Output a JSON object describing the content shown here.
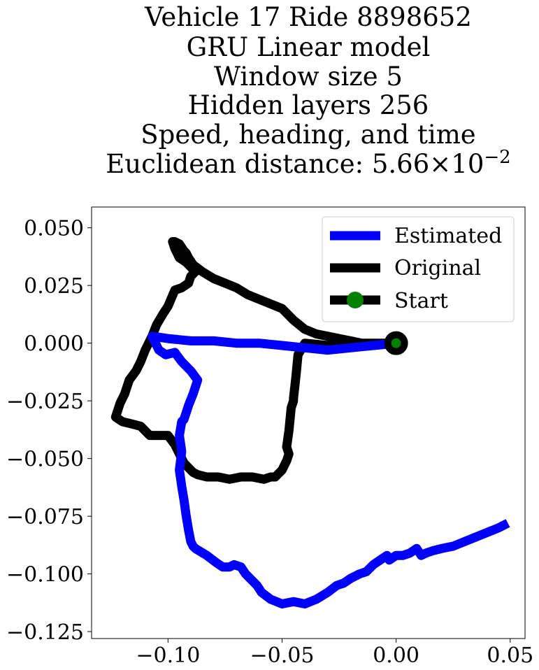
{
  "chart_data": {
    "type": "line",
    "title_lines": [
      "Vehicle 17 Ride 8898652",
      "GRU Linear model",
      "Window size 5",
      "Hidden layers 256",
      "Speed, heading, and time"
    ],
    "distance_label": "Euclidean distance: ",
    "distance_mantissa": "5.66",
    "distance_times": "×",
    "distance_base": "10",
    "distance_exponent": "−2",
    "xlim": [
      -0.1335,
      0.0565
    ],
    "ylim": [
      -0.128,
      0.059
    ],
    "xticks": [
      -0.1,
      -0.05,
      0.0,
      0.05
    ],
    "xtick_labels": [
      "−0.10",
      "−0.05",
      "0.00",
      "0.05"
    ],
    "yticks": [
      0.05,
      0.025,
      0.0,
      -0.025,
      -0.05,
      -0.075,
      -0.1,
      -0.125
    ],
    "ytick_labels": [
      "0.050",
      "0.025",
      "0.000",
      "−0.025",
      "−0.050",
      "−0.075",
      "−0.100",
      "−0.125"
    ],
    "grid": false,
    "legend_position": "top-right",
    "series": [
      {
        "name": "Estimated",
        "color": "#0000ff",
        "x": [
          0.0,
          -0.01,
          -0.02,
          -0.03,
          -0.04,
          -0.05,
          -0.06,
          -0.07,
          -0.08,
          -0.09,
          -0.1,
          -0.107,
          -0.104,
          -0.101,
          -0.097,
          -0.094,
          -0.09,
          -0.087,
          -0.089,
          -0.091,
          -0.093,
          -0.094,
          -0.095,
          -0.094,
          -0.095,
          -0.094,
          -0.093,
          -0.092,
          -0.091,
          -0.09,
          -0.089,
          -0.088,
          -0.083,
          -0.079,
          -0.076,
          -0.073,
          -0.071,
          -0.068,
          -0.066,
          -0.064,
          -0.061,
          -0.059,
          -0.055,
          -0.05,
          -0.045,
          -0.04,
          -0.035,
          -0.03,
          -0.026,
          -0.023,
          -0.02,
          -0.016,
          -0.013,
          -0.01,
          -0.007,
          -0.004,
          -0.003,
          0.0,
          0.003,
          0.006,
          0.009,
          0.011,
          0.013,
          0.016,
          0.02,
          0.025,
          0.03,
          0.035,
          0.04,
          0.045,
          0.049
        ],
        "y": [
          0.0,
          -0.001,
          -0.002,
          -0.003,
          -0.002,
          -0.001,
          0.0,
          0.0,
          0.001,
          0.001,
          0.002,
          0.003,
          -0.003,
          -0.005,
          -0.004,
          -0.008,
          -0.012,
          -0.016,
          -0.022,
          -0.027,
          -0.033,
          -0.034,
          -0.04,
          -0.047,
          -0.055,
          -0.062,
          -0.068,
          -0.075,
          -0.081,
          -0.086,
          -0.088,
          -0.089,
          -0.092,
          -0.095,
          -0.097,
          -0.097,
          -0.096,
          -0.097,
          -0.1,
          -0.102,
          -0.105,
          -0.108,
          -0.111,
          -0.113,
          -0.112,
          -0.113,
          -0.111,
          -0.108,
          -0.105,
          -0.104,
          -0.102,
          -0.1,
          -0.099,
          -0.096,
          -0.094,
          -0.092,
          -0.094,
          -0.092,
          -0.092,
          -0.091,
          -0.089,
          -0.092,
          -0.091,
          -0.09,
          -0.089,
          -0.088,
          -0.086,
          -0.084,
          -0.082,
          -0.08,
          -0.078
        ]
      },
      {
        "name": "Original",
        "color": "#000000",
        "x": [
          0.0,
          -0.01,
          -0.02,
          -0.03,
          -0.04,
          -0.043,
          -0.044,
          -0.045,
          -0.045,
          -0.046,
          -0.047,
          -0.048,
          -0.047,
          -0.048,
          -0.049,
          -0.05,
          -0.052,
          -0.053,
          -0.055,
          -0.058,
          -0.063,
          -0.068,
          -0.073,
          -0.078,
          -0.083,
          -0.087,
          -0.089,
          -0.091,
          -0.093,
          -0.095,
          -0.097,
          -0.1,
          -0.104,
          -0.108,
          -0.112,
          -0.116,
          -0.12,
          -0.123,
          -0.121,
          -0.119,
          -0.117,
          -0.114,
          -0.112,
          -0.11,
          -0.107,
          -0.105,
          -0.102,
          -0.1,
          -0.097,
          -0.094,
          -0.091,
          -0.09,
          -0.088,
          -0.092,
          -0.095,
          -0.097,
          -0.098,
          -0.097,
          -0.095,
          -0.093,
          -0.092,
          -0.091,
          -0.089,
          -0.085,
          -0.08,
          -0.075,
          -0.07,
          -0.065,
          -0.06,
          -0.055,
          -0.05,
          -0.045,
          -0.04,
          -0.035,
          -0.03,
          -0.025,
          -0.02,
          -0.015,
          -0.01,
          -0.005,
          0.0
        ],
        "y": [
          0.0,
          -0.001,
          0.0,
          -0.001,
          0.0,
          -0.005,
          -0.015,
          -0.024,
          -0.025,
          -0.028,
          -0.038,
          -0.045,
          -0.048,
          -0.051,
          -0.053,
          -0.055,
          -0.057,
          -0.058,
          -0.058,
          -0.059,
          -0.058,
          -0.058,
          -0.059,
          -0.058,
          -0.058,
          -0.057,
          -0.056,
          -0.054,
          -0.052,
          -0.048,
          -0.044,
          -0.04,
          -0.04,
          -0.04,
          -0.036,
          -0.035,
          -0.034,
          -0.032,
          -0.026,
          -0.022,
          -0.016,
          -0.012,
          -0.008,
          -0.003,
          0.003,
          0.008,
          0.013,
          0.016,
          0.023,
          0.024,
          0.026,
          0.029,
          0.031,
          0.035,
          0.037,
          0.041,
          0.044,
          0.044,
          0.043,
          0.04,
          0.039,
          0.037,
          0.034,
          0.031,
          0.028,
          0.026,
          0.024,
          0.021,
          0.019,
          0.017,
          0.015,
          0.01,
          0.006,
          0.004,
          0.003,
          0.002,
          0.001,
          0.0,
          0.0,
          0.0,
          0.0
        ]
      }
    ],
    "start_marker": {
      "name": "Start",
      "x": 0.0,
      "y": 0.0,
      "edge_color": "#000000",
      "face_color": "#008000"
    }
  }
}
